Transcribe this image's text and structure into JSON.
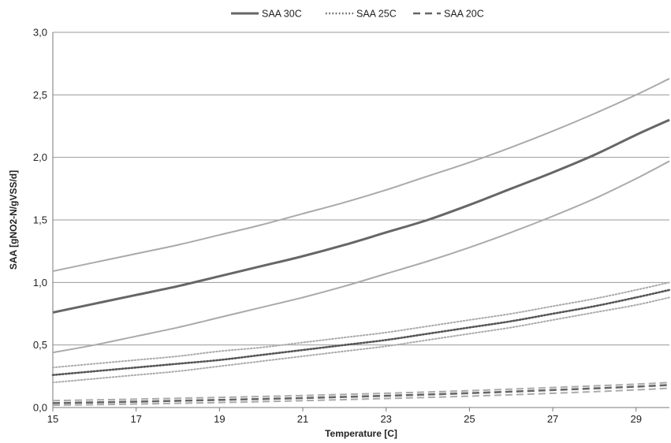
{
  "chart_data": {
    "type": "line",
    "title": "",
    "xlabel": "Temperature [C]",
    "ylabel": "SAA [gNO2-N/gVSS/d]",
    "xlim": [
      15,
      29.8
    ],
    "ylim": [
      0,
      3
    ],
    "x_ticks": [
      "15",
      "17",
      "19",
      "21",
      "23",
      "25",
      "27",
      "29"
    ],
    "y_ticks": [
      "0,0",
      "0,5",
      "1,0",
      "1,5",
      "2,0",
      "2,5",
      "3,0"
    ],
    "grid": "horizontal",
    "legend_position": "top-center",
    "x": [
      15,
      16,
      17,
      18,
      19,
      20,
      21,
      22,
      23,
      24,
      25,
      26,
      27,
      28,
      29,
      29.8
    ],
    "series": [
      {
        "name": "SAA 30C",
        "style": "solid",
        "color": "#666666",
        "values": [
          0.76,
          0.83,
          0.9,
          0.97,
          1.05,
          1.13,
          1.21,
          1.3,
          1.4,
          1.5,
          1.62,
          1.75,
          1.88,
          2.02,
          2.18,
          2.3
        ]
      },
      {
        "style": "solid",
        "color": "#aaaaaa",
        "band_of": "SAA 30C",
        "values": [
          1.09,
          1.16,
          1.23,
          1.3,
          1.38,
          1.46,
          1.55,
          1.64,
          1.74,
          1.85,
          1.96,
          2.08,
          2.21,
          2.35,
          2.5,
          2.63
        ]
      },
      {
        "style": "solid",
        "color": "#aaaaaa",
        "band_of": "SAA 30C",
        "values": [
          0.44,
          0.5,
          0.57,
          0.64,
          0.72,
          0.8,
          0.88,
          0.97,
          1.07,
          1.17,
          1.28,
          1.4,
          1.53,
          1.67,
          1.83,
          1.97
        ]
      },
      {
        "name": "SAA 25C",
        "style": "dotted",
        "color": "#555555",
        "values": [
          0.26,
          0.29,
          0.32,
          0.35,
          0.38,
          0.42,
          0.46,
          0.5,
          0.54,
          0.59,
          0.64,
          0.69,
          0.75,
          0.81,
          0.88,
          0.94
        ]
      },
      {
        "style": "dotted",
        "color": "#aaaaaa",
        "band_of": "SAA 25C",
        "values": [
          0.32,
          0.35,
          0.38,
          0.41,
          0.45,
          0.48,
          0.52,
          0.56,
          0.6,
          0.65,
          0.7,
          0.75,
          0.81,
          0.87,
          0.94,
          1.0
        ]
      },
      {
        "style": "dotted",
        "color": "#aaaaaa",
        "band_of": "SAA 25C",
        "values": [
          0.2,
          0.23,
          0.26,
          0.29,
          0.33,
          0.37,
          0.41,
          0.45,
          0.49,
          0.54,
          0.59,
          0.64,
          0.7,
          0.76,
          0.82,
          0.88
        ]
      },
      {
        "name": "SAA 20C",
        "style": "dashed",
        "color": "#666666",
        "values": [
          0.035,
          0.041,
          0.047,
          0.054,
          0.061,
          0.068,
          0.076,
          0.085,
          0.094,
          0.104,
          0.115,
          0.127,
          0.14,
          0.153,
          0.167,
          0.18
        ]
      },
      {
        "style": "dashed",
        "color": "#aaaaaa",
        "band_of": "SAA 20C",
        "values": [
          0.055,
          0.061,
          0.067,
          0.074,
          0.081,
          0.088,
          0.096,
          0.105,
          0.114,
          0.124,
          0.135,
          0.147,
          0.16,
          0.173,
          0.187,
          0.2
        ]
      },
      {
        "style": "dashed",
        "color": "#aaaaaa",
        "band_of": "SAA 20C",
        "values": [
          0.018,
          0.023,
          0.028,
          0.034,
          0.04,
          0.047,
          0.055,
          0.063,
          0.072,
          0.081,
          0.091,
          0.102,
          0.114,
          0.127,
          0.141,
          0.155
        ]
      }
    ],
    "legend": [
      {
        "label": "SAA 30C",
        "style": "solid"
      },
      {
        "label": "SAA 25C",
        "style": "dotted"
      },
      {
        "label": "SAA 20C",
        "style": "dashed"
      }
    ]
  }
}
